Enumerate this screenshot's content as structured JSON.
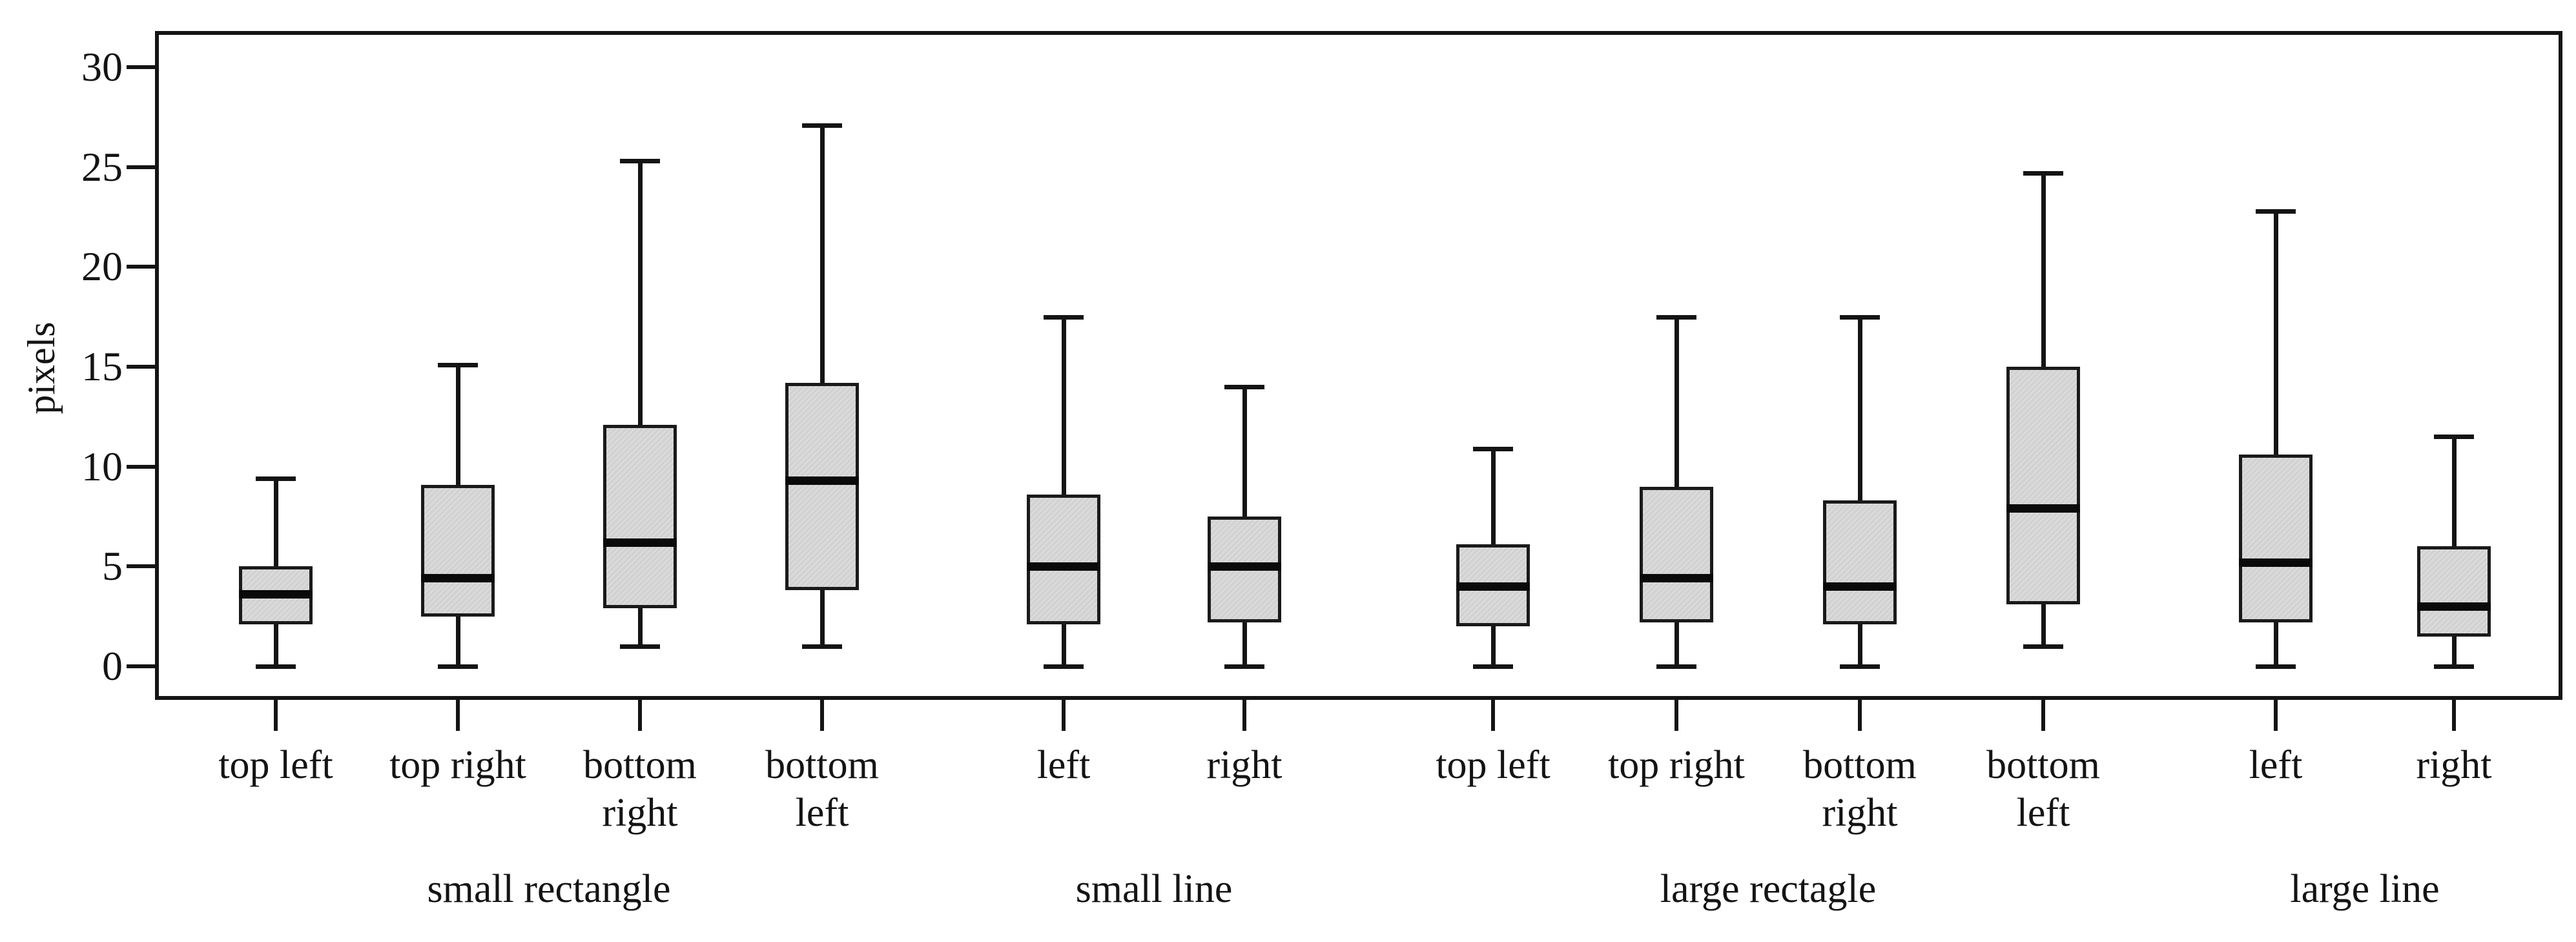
{
  "chart_data": {
    "type": "boxplot",
    "title": "",
    "ylabel": "pixels",
    "xlabel": "",
    "yticks": [
      0,
      5,
      10,
      15,
      20,
      25,
      30
    ],
    "ylim": [
      -1.7,
      31.8
    ],
    "grid": false,
    "legend": "none",
    "colors": {
      "box_fill": "#d6d6d6",
      "box_border": "#1a1a1a",
      "median": "#0a0a0a",
      "axis_ink": "#141414",
      "background": "#ffffff"
    },
    "groups": [
      {
        "label": "small rectangle",
        "boxes": [
          {
            "label": "top left",
            "whisker_low": 0,
            "q1": 2.1,
            "median": 3.6,
            "q3": 5.0,
            "whisker_high": 9.4
          },
          {
            "label": "top right",
            "whisker_low": 0,
            "q1": 2.5,
            "median": 4.4,
            "q3": 9.1,
            "whisker_high": 15.1
          },
          {
            "label": "bottom\nright",
            "whisker_low": 1.0,
            "q1": 2.9,
            "median": 6.2,
            "q3": 12.1,
            "whisker_high": 25.3
          },
          {
            "label": "bottom\nleft",
            "whisker_low": 1.0,
            "q1": 3.8,
            "median": 9.3,
            "q3": 14.2,
            "whisker_high": 27.1
          }
        ]
      },
      {
        "label": "small line",
        "boxes": [
          {
            "label": "left",
            "whisker_low": 0,
            "q1": 2.1,
            "median": 5.0,
            "q3": 8.6,
            "whisker_high": 17.5
          },
          {
            "label": "right",
            "whisker_low": 0,
            "q1": 2.2,
            "median": 5.0,
            "q3": 7.5,
            "whisker_high": 14.0
          }
        ]
      },
      {
        "label": "large rectagle",
        "boxes": [
          {
            "label": "top left",
            "whisker_low": 0,
            "q1": 2.0,
            "median": 4.0,
            "q3": 6.1,
            "whisker_high": 10.9
          },
          {
            "label": "top right",
            "whisker_low": 0,
            "q1": 2.2,
            "median": 4.4,
            "q3": 9.0,
            "whisker_high": 17.5
          },
          {
            "label": "bottom\nright",
            "whisker_low": 0,
            "q1": 2.1,
            "median": 4.0,
            "q3": 8.3,
            "whisker_high": 17.5
          },
          {
            "label": "bottom\nleft",
            "whisker_low": 1.0,
            "q1": 3.1,
            "median": 7.9,
            "q3": 15.0,
            "whisker_high": 24.7
          }
        ]
      },
      {
        "label": "large line",
        "boxes": [
          {
            "label": "left",
            "whisker_low": 0,
            "q1": 2.2,
            "median": 5.2,
            "q3": 10.6,
            "whisker_high": 22.8
          },
          {
            "label": "right",
            "whisker_low": 0,
            "q1": 1.5,
            "median": 3.0,
            "q3": 6.0,
            "whisker_high": 11.5
          }
        ]
      }
    ]
  }
}
